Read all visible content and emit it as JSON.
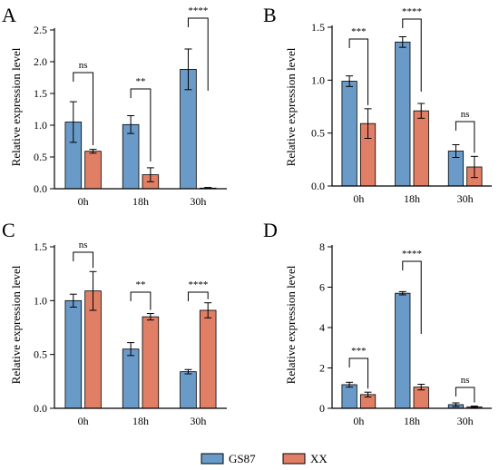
{
  "colors": {
    "series_a": "#6a9bc8",
    "series_b": "#e07f66",
    "axis": "#000000"
  },
  "legend": {
    "items": [
      {
        "label": "GS87"
      },
      {
        "label": "XX"
      }
    ]
  },
  "chart_data": [
    {
      "type": "bar",
      "panel_label": "A",
      "ylabel": "Relative  expression level",
      "categories": [
        "0h",
        "18h",
        "30h"
      ],
      "ylim": [
        0,
        2.5
      ],
      "yticks": [
        0,
        0.5,
        1.0,
        1.5,
        2.0,
        2.5
      ],
      "ytick_labels": [
        "0.0",
        "0.5",
        "1.0",
        "1.5",
        "2.0",
        "2.5"
      ],
      "series": [
        {
          "name": "GS87",
          "values": [
            1.05,
            1.01,
            1.88
          ],
          "errors": [
            0.32,
            0.14,
            0.32
          ]
        },
        {
          "name": "XX",
          "values": [
            0.59,
            0.22,
            0.01
          ],
          "errors": [
            0.03,
            0.11,
            0.01
          ]
        }
      ],
      "significance": [
        "ns",
        "**",
        "****"
      ]
    },
    {
      "type": "bar",
      "panel_label": "B",
      "ylabel": "Relative  expression level",
      "categories": [
        "0h",
        "18h",
        "30h"
      ],
      "ylim": [
        0,
        1.5
      ],
      "yticks": [
        0,
        0.5,
        1.0,
        1.5
      ],
      "ytick_labels": [
        "0.0",
        "0.5",
        "1.0",
        "1.5"
      ],
      "series": [
        {
          "name": "GS87",
          "values": [
            0.99,
            1.36,
            0.33
          ],
          "errors": [
            0.05,
            0.05,
            0.06
          ]
        },
        {
          "name": "XX",
          "values": [
            0.59,
            0.71,
            0.18
          ],
          "errors": [
            0.14,
            0.07,
            0.1
          ]
        }
      ],
      "significance": [
        "***",
        "****",
        "ns"
      ]
    },
    {
      "type": "bar",
      "panel_label": "C",
      "ylabel": "Relative  expression level",
      "categories": [
        "0h",
        "18h",
        "30h"
      ],
      "ylim": [
        0,
        1.5
      ],
      "yticks": [
        0,
        0.5,
        1.0,
        1.5
      ],
      "ytick_labels": [
        "0.0",
        "0.5",
        "1.0",
        "1.5"
      ],
      "series": [
        {
          "name": "GS87",
          "values": [
            1.0,
            0.55,
            0.34
          ],
          "errors": [
            0.06,
            0.06,
            0.02
          ]
        },
        {
          "name": "XX",
          "values": [
            1.09,
            0.85,
            0.91
          ],
          "errors": [
            0.18,
            0.03,
            0.07
          ]
        }
      ],
      "significance": [
        "ns",
        "**",
        "****"
      ]
    },
    {
      "type": "bar",
      "panel_label": "D",
      "ylabel": "Relative  expression level",
      "categories": [
        "0h",
        "18h",
        "30h"
      ],
      "ylim": [
        0,
        8
      ],
      "yticks": [
        0,
        2,
        4,
        6,
        8
      ],
      "ytick_labels": [
        "0",
        "2",
        "4",
        "6",
        "8"
      ],
      "series": [
        {
          "name": "GS87",
          "values": [
            1.17,
            5.7,
            0.18
          ],
          "errors": [
            0.12,
            0.08,
            0.09
          ]
        },
        {
          "name": "XX",
          "values": [
            0.68,
            1.05,
            0.07
          ],
          "errors": [
            0.12,
            0.14,
            0.04
          ]
        }
      ],
      "significance": [
        "***",
        "****",
        "ns"
      ]
    }
  ]
}
